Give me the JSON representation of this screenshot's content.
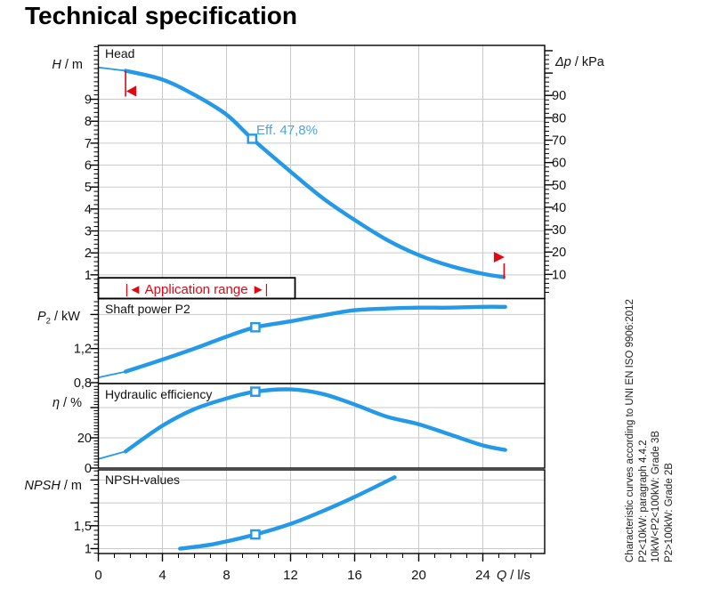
{
  "title": "Technical specification",
  "colors": {
    "curve": "#2499e8",
    "eff_text": "#4aa5e6",
    "red": "#e30613",
    "grid": "#c9c9c9",
    "axis": "#000000",
    "marker_fill": "#ffffff"
  },
  "labels": {
    "eff_value": "Eff.  47,8%"
  },
  "axis_titles": {
    "h": {
      "sym": "H",
      "rest": " / m"
    },
    "dp": {
      "sym": "Δp",
      "rest": "  / kPa"
    },
    "p2": {
      "sym": "P",
      "sub": "2",
      "rest": " / kW"
    },
    "eff": {
      "sym": "η",
      "rest": " / %"
    },
    "npsh": {
      "sym": "NPSH",
      "rest": "  / m"
    },
    "q": {
      "sym": "Q",
      "rest": " / l/s"
    }
  },
  "side_note": {
    "lines": [
      "Characteristic curves according to UNI EN ISO 9906:2012",
      "P2<10kW:  paragraph 4.4.2",
      "10kW<P2<100kW: Grade 3B",
      "P2>100kW: Grade 2B"
    ]
  },
  "axes": {
    "x": {
      "side": "bottom",
      "scale": "x",
      "min": 0,
      "max": 27.7,
      "step": 1,
      "majors": [
        0,
        4,
        8,
        12,
        16,
        20,
        24
      ],
      "labels": [
        [
          "0",
          0
        ],
        [
          "4",
          4
        ],
        [
          "8",
          8
        ],
        [
          "12",
          12
        ],
        [
          "16",
          16
        ],
        [
          "20",
          20
        ],
        [
          "24",
          24
        ]
      ],
      "grid_values": [
        4,
        8,
        12,
        16,
        20,
        24
      ]
    },
    "head_left": {
      "side": "left",
      "scale": "head",
      "min": 0.2,
      "max": 11.4,
      "step": 0.2,
      "majors": [
        1,
        2,
        3,
        4,
        5,
        6,
        7,
        8,
        9
      ],
      "labels": [
        [
          "1",
          1
        ],
        [
          "2",
          2
        ],
        [
          "3",
          3
        ],
        [
          "4",
          4
        ],
        [
          "5",
          5
        ],
        [
          "6",
          6
        ],
        [
          "7",
          7
        ],
        [
          "8",
          8
        ],
        [
          "9",
          9
        ]
      ],
      "grid_values": [
        1,
        2,
        3,
        4,
        5,
        6,
        7,
        8,
        9
      ]
    },
    "dp_right": {
      "side": "right",
      "scale": "kpa",
      "min": 2,
      "max": 110,
      "step": 2,
      "majors": [
        10,
        20,
        30,
        40,
        50,
        60,
        70,
        80,
        90,
        100,
        110
      ],
      "labels": [
        [
          "10",
          10
        ],
        [
          "20",
          20
        ],
        [
          "30",
          30
        ],
        [
          "40",
          40
        ],
        [
          "50",
          50
        ],
        [
          "60",
          60
        ],
        [
          "70",
          70
        ],
        [
          "80",
          80
        ],
        [
          "90",
          90
        ]
      ]
    },
    "p2_left": {
      "side": "left",
      "scale": "p2",
      "min": 0.8,
      "max": 1.75,
      "step": 0.05,
      "majors": [
        0.8,
        1.2,
        1.6
      ],
      "labels": [
        [
          "0,8",
          0.8
        ],
        [
          "1,2",
          1.2
        ]
      ],
      "grid_values": [
        1.2,
        1.6
      ]
    },
    "eff_left": {
      "side": "left",
      "scale": "eff",
      "min": 0,
      "max": 54,
      "step": 2,
      "majors": [
        0,
        20,
        40
      ],
      "labels": [
        [
          "0",
          0
        ],
        [
          "20",
          20
        ]
      ],
      "grid_values": [
        20,
        40
      ]
    },
    "npsh_left": {
      "side": "left",
      "scale": "npsh",
      "min": 0.9,
      "max": 2.7,
      "step": 0.1,
      "majors": [
        1,
        1.5,
        2,
        2.5
      ],
      "labels": [
        [
          "1",
          1
        ],
        [
          "1,5",
          1.5
        ]
      ],
      "grid_values": [
        1,
        1.5,
        2,
        2.5
      ]
    }
  },
  "chart_data": [
    {
      "type": "line",
      "panel": "head",
      "title": "Head",
      "xlabel": "Q / l/s",
      "ylabel": "H / m",
      "y2label": "Δp / kPa",
      "xlim": [
        0,
        27.7
      ],
      "ylim": [
        0,
        11.4
      ],
      "y2lim": [
        0,
        112
      ],
      "thin_points": [
        [
          0,
          10.45
        ],
        [
          1.7,
          10.3
        ]
      ],
      "points": [
        [
          1.7,
          10.3
        ],
        [
          4,
          9.9
        ],
        [
          6,
          9.2
        ],
        [
          8,
          8.3
        ],
        [
          9.6,
          7.2
        ],
        [
          12,
          5.7
        ],
        [
          14,
          4.5
        ],
        [
          16,
          3.5
        ],
        [
          18,
          2.6
        ],
        [
          20,
          1.9
        ],
        [
          22,
          1.4
        ],
        [
          24,
          1.05
        ],
        [
          25.3,
          0.9
        ]
      ],
      "marker": [
        9.6,
        7.2
      ],
      "duty_point": {
        "Q_ls": 9.6,
        "H_m": 7.2,
        "efficiency_pct": 47.8
      },
      "application_range": {
        "label": "|◄ Application range ►|",
        "min_q": 1.7,
        "max_q": 25.3
      }
    },
    {
      "type": "line",
      "panel": "p2",
      "title": "Shaft power P2",
      "xlabel": "Q / l/s",
      "ylabel": "P2 / kW",
      "ylim": [
        0.78,
        1.78
      ],
      "thin_points": [
        [
          0,
          0.86
        ],
        [
          1.7,
          0.93
        ]
      ],
      "points": [
        [
          1.7,
          0.93
        ],
        [
          4,
          1.07
        ],
        [
          6,
          1.2
        ],
        [
          8,
          1.34
        ],
        [
          9.8,
          1.45
        ],
        [
          12,
          1.52
        ],
        [
          14,
          1.59
        ],
        [
          16,
          1.65
        ],
        [
          18,
          1.67
        ],
        [
          20,
          1.68
        ],
        [
          22,
          1.68
        ],
        [
          24,
          1.69
        ],
        [
          25.4,
          1.69
        ]
      ],
      "marker": [
        9.8,
        1.45
      ]
    },
    {
      "type": "line",
      "panel": "eff",
      "title": "Hydraulic efficiency",
      "xlabel": "Q / l/s",
      "ylabel": "η / %",
      "ylim": [
        0,
        56
      ],
      "thin_points": [
        [
          0,
          6
        ],
        [
          1.7,
          11
        ]
      ],
      "points": [
        [
          1.7,
          11
        ],
        [
          4,
          28
        ],
        [
          6,
          39
        ],
        [
          8,
          46
        ],
        [
          9.8,
          50.5
        ],
        [
          12,
          52
        ],
        [
          14,
          49
        ],
        [
          16,
          42
        ],
        [
          18,
          34
        ],
        [
          20,
          29
        ],
        [
          22,
          22
        ],
        [
          24,
          15
        ],
        [
          25.4,
          12
        ]
      ],
      "marker": [
        9.8,
        50.5
      ]
    },
    {
      "type": "line",
      "panel": "npsh",
      "title": "NPSH-values",
      "xlabel": "Q / l/s",
      "ylabel": "NPSH / m",
      "ylim": [
        0.9,
        2.73
      ],
      "points": [
        [
          5.1,
          1.0
        ],
        [
          7.2,
          1.1
        ],
        [
          9.8,
          1.31
        ],
        [
          12,
          1.54
        ],
        [
          14,
          1.82
        ],
        [
          16,
          2.13
        ],
        [
          18.5,
          2.56
        ]
      ],
      "marker": [
        9.8,
        1.31
      ]
    }
  ]
}
